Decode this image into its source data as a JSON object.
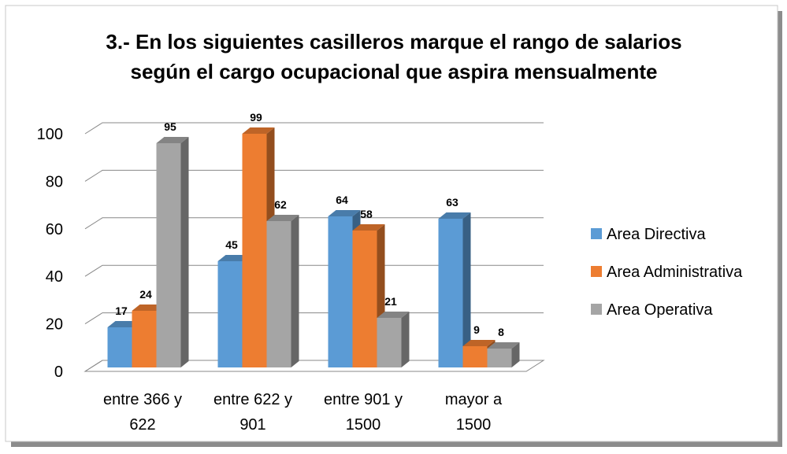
{
  "chart_data": {
    "type": "bar3d",
    "title": "3.- En los siguientes casilleros marque el rango de salarios según el cargo ocupacional que aspira mensualmente",
    "categories": [
      "entre 366 y 622",
      "entre 622 y 901",
      "entre 901 y 1500",
      "mayor a 1500"
    ],
    "series": [
      {
        "name": "Area Directiva",
        "color": "#5b9bd5",
        "values": [
          17,
          45,
          64,
          63
        ]
      },
      {
        "name": "Area Administrativa",
        "color": "#ed7d31",
        "values": [
          24,
          99,
          58,
          9
        ]
      },
      {
        "name": "Area Operativa",
        "color": "#a5a5a5",
        "values": [
          95,
          62,
          21,
          8
        ]
      }
    ],
    "ylim": [
      0,
      100
    ],
    "yticks": [
      0,
      20,
      40,
      60,
      80,
      100
    ],
    "grid": true,
    "legend": "right"
  }
}
